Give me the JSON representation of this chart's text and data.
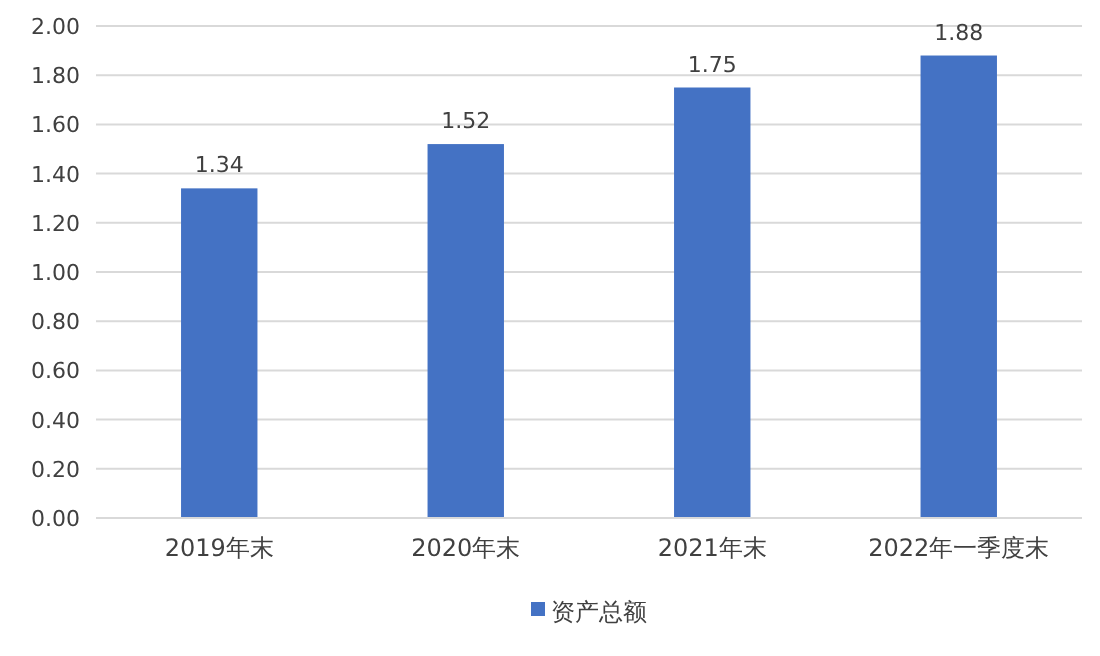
{
  "chart_data": {
    "type": "bar",
    "categories": [
      "2019年末",
      "2020年末",
      "2021年末",
      "2022年一季度末"
    ],
    "series": [
      {
        "name": "资产总额",
        "color": "#4472c4",
        "values": [
          1.34,
          1.52,
          1.75,
          1.88
        ]
      }
    ],
    "ylim": [
      0,
      2
    ],
    "yticks": [
      {
        "value": 0,
        "label": "0.00"
      },
      {
        "value": 0.2,
        "label": "0.20"
      },
      {
        "value": 0.4,
        "label": "0.40"
      },
      {
        "value": 0.6,
        "label": "0.60"
      },
      {
        "value": 0.8,
        "label": "0.80"
      },
      {
        "value": 1,
        "label": "1.00"
      },
      {
        "value": 1.2,
        "label": "1.20"
      },
      {
        "value": 1.4,
        "label": "1.40"
      },
      {
        "value": 1.6,
        "label": "1.60"
      },
      {
        "value": 1.8,
        "label": "1.80"
      },
      {
        "value": 2,
        "label": "2.00"
      }
    ],
    "grid": "y",
    "legend": "bottom",
    "data_labels": true
  }
}
